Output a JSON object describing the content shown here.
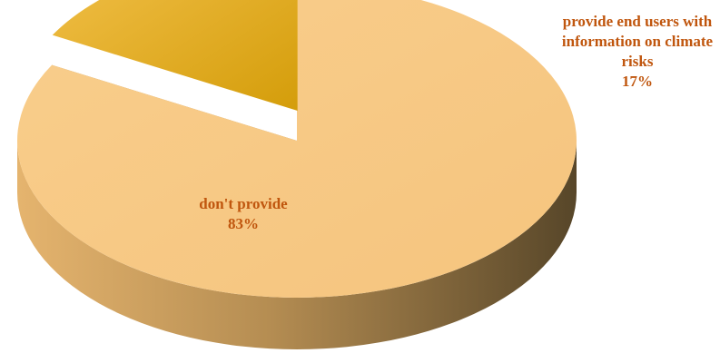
{
  "chart_data": {
    "type": "pie",
    "style": "3d-exploded",
    "slices": [
      {
        "name": "don't provide",
        "value": 83,
        "value_label": "83%",
        "label_lines": [
          "don't provide"
        ],
        "colors": {
          "top": "#F7C883",
          "side_light": "#E2B26C",
          "side_dark": "#5B4A2C"
        }
      },
      {
        "name": "provide end users with information on climate risks",
        "value": 17,
        "value_label": "17%",
        "label_lines": [
          "provide end users with",
          "information on climate",
          "risks"
        ],
        "colors": {
          "top_light": "#F0BC3A",
          "top_dark": "#D79F0C",
          "side": "#6E5410"
        }
      }
    ]
  }
}
